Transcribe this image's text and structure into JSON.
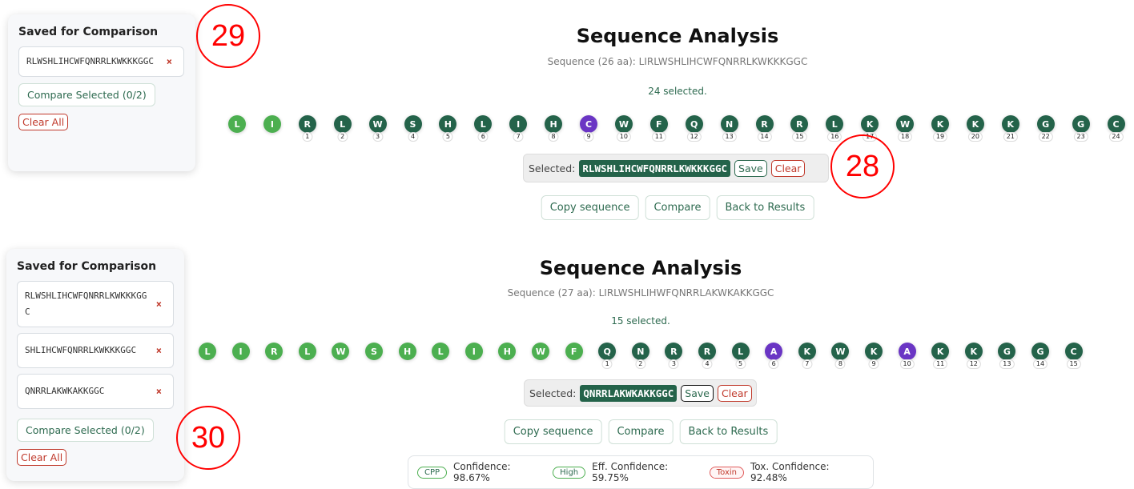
{
  "top": {
    "sidebar": {
      "title": "Saved for Comparison",
      "items": [
        {
          "sequence": "RLWSHLIHCWFQNRRLKWKKKGGC",
          "remove": "×"
        }
      ],
      "compare_label": "Compare Selected (0/2)",
      "clear_label": "Clear All"
    },
    "title": "Sequence Analysis",
    "subtitle": "Sequence (26 aa): LIRLWSHLIHCWFQNRRLKWKKKGGC",
    "selected_count": "24 selected.",
    "sequence": "LIRLWSHLIHCWFQNRRLKWKKKGGC",
    "selection_start": 2,
    "highlighted_positions": [
      9
    ],
    "selected_label": "Selected:",
    "selected_sequence": "RLWSHLIHCWFQNRRLKWKKKGGC",
    "save_label": "Save",
    "clear_label": "Clear",
    "actions": [
      "Copy sequence",
      "Compare",
      "Back to Results"
    ]
  },
  "bottom": {
    "sidebar": {
      "title": "Saved for Comparison",
      "items": [
        {
          "sequence": "RLWSHLIHCWFQNRRLKWKKKGGC",
          "remove": "×"
        },
        {
          "sequence": "SHLIHCWFQNRRLKWKKKGGC",
          "remove": "×"
        },
        {
          "sequence": "QNRRLAKWKAKKGGC",
          "remove": "×"
        }
      ],
      "compare_label": "Compare Selected (0/2)",
      "clear_label": "Clear All"
    },
    "title": "Sequence Analysis",
    "subtitle": "Sequence (27 aa): LIRLWSHLIHWFQNRRLAKWKAKKGGC",
    "selected_count": "15 selected.",
    "sequence": "LIRLWSHLIHWFQNRRLAKWKAKKGGC",
    "selection_start": 12,
    "highlighted_positions": [
      6,
      10
    ],
    "selected_label": "Selected:",
    "selected_sequence": "QNRRLAKWKAKKGGC",
    "save_label": "Save",
    "clear_label": "Clear",
    "actions": [
      "Copy sequence",
      "Compare",
      "Back to Results"
    ],
    "prediction": {
      "cpp_badge": "CPP",
      "cpp_conf": "Confidence: 98.67%",
      "eff_badge": "High",
      "eff_conf": "Eff. Confidence: 59.75%",
      "tox_badge": "Toxin",
      "tox_conf": "Tox. Confidence: 92.48%"
    }
  },
  "annotations": [
    "29",
    "28",
    "30"
  ],
  "colors": {
    "selected": "#24634a",
    "unselected": "#4caf50",
    "highlighted": "#6a35c4",
    "danger": "#c0392b",
    "annotation": "#ff0000"
  }
}
